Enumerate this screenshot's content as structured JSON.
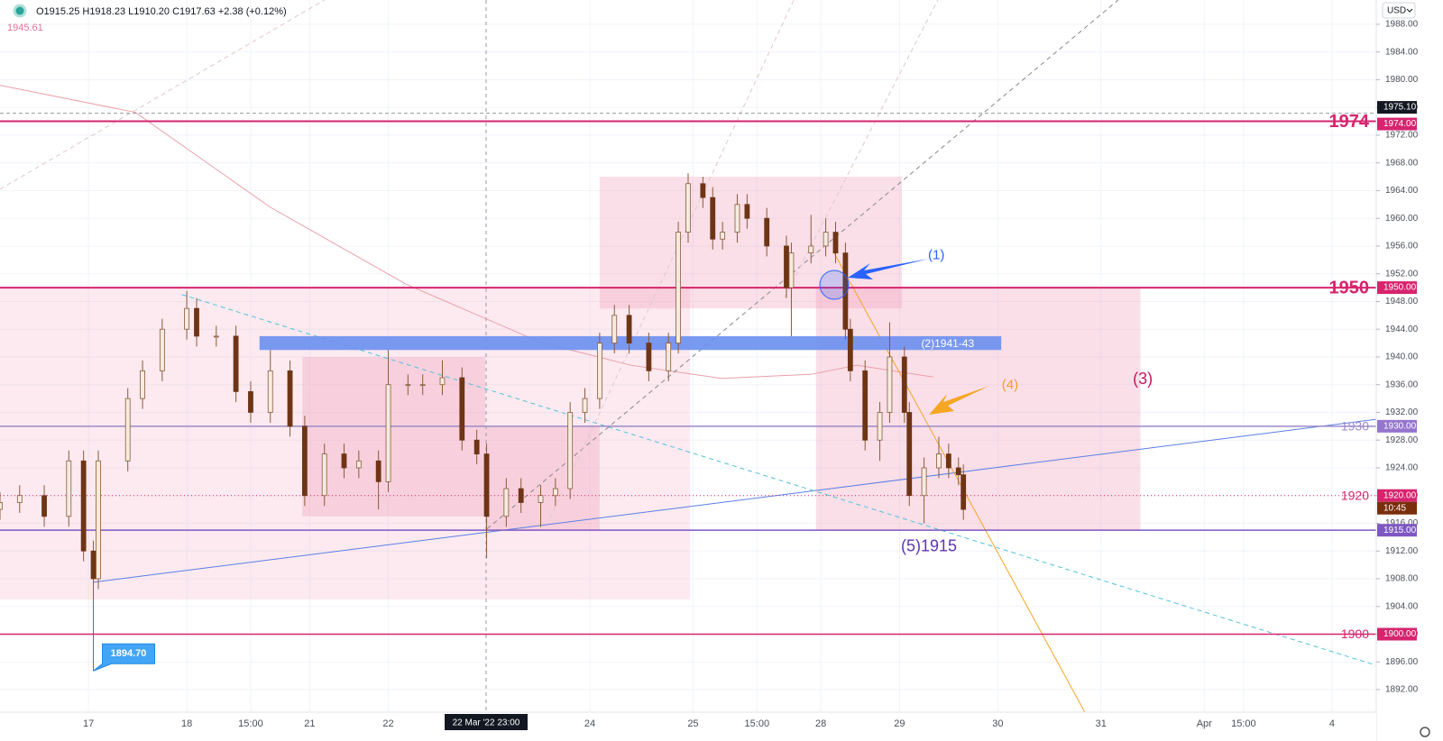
{
  "header": {
    "ohlc": "O1915.25 H1918.23 L1910.20 C1917.63 +2.38 (+0.12%)",
    "indicator_value": "1945.61",
    "currency": "USD"
  },
  "chart_data": {
    "type": "candlestick",
    "x": [
      0,
      4,
      9,
      14,
      17,
      19,
      20,
      26,
      29,
      33,
      38,
      40,
      44,
      48,
      51,
      55,
      59,
      62,
      66,
      70,
      73,
      77,
      79,
      83,
      86,
      90,
      94,
      97,
      99,
      103,
      106,
      110,
      113,
      116,
      119,
      122,
      125,
      128,
      132,
      136,
      138,
      140,
      143,
      145,
      147,
      150,
      152,
      156,
      160,
      161,
      165,
      168,
      170,
      172,
      173,
      176,
      179,
      181,
      184,
      185,
      188,
      191,
      193,
      195,
      196
    ],
    "open": [
      1918,
      1919,
      1920,
      1917,
      1925,
      1912,
      1908,
      1925,
      1934,
      1938,
      1944,
      1947,
      1943,
      1943,
      1935,
      1932,
      1938,
      1930,
      1920,
      1926,
      1924,
      1925,
      1922,
      1936,
      1936,
      1936,
      1937,
      1928,
      1926,
      1917,
      1921,
      1919,
      1920,
      1921,
      1932,
      1934,
      1942,
      1946,
      1942,
      1938,
      1942,
      1958,
      1965,
      1963,
      1957,
      1958,
      1962,
      1960,
      1956,
      1950,
      1955,
      1956,
      1958,
      1955,
      1944,
      1938,
      1928,
      1932,
      1940,
      1932,
      1920,
      1924,
      1926,
      1924,
      1923
    ],
    "high": [
      1920.5,
      1921.5,
      1921.5,
      1926.5,
      1926.5,
      1913.5,
      1926.5,
      1935.5,
      1939.5,
      1945.5,
      1949.5,
      1948.5,
      1944.5,
      1944.5,
      1936.5,
      1941,
      1939.5,
      1931.5,
      1927.5,
      1927.5,
      1926.5,
      1926.5,
      1941,
      1937.5,
      1937.5,
      1939.5,
      1938.5,
      1929.5,
      1927.5,
      1922.5,
      1922.5,
      1921.5,
      1922.5,
      1933.5,
      1935.5,
      1943.5,
      1947.5,
      1947.5,
      1943.5,
      1943.5,
      1959.5,
      1966.5,
      1966,
      1964.5,
      1959.5,
      1963.5,
      1963.5,
      1961.5,
      1957.5,
      1956.5,
      1960.5,
      1960,
      1959.5,
      1956.5,
      1945.5,
      1939.5,
      1933.5,
      1945,
      1941.5,
      1933.5,
      1925.5,
      1928.5,
      1927.5,
      1925.5,
      1924.5
    ],
    "low": [
      1916.5,
      1917.5,
      1915.5,
      1915.5,
      1910.5,
      1894.7,
      1906.5,
      1923.5,
      1932.5,
      1936.5,
      1942.5,
      1941.5,
      1941.5,
      1933.5,
      1930.5,
      1930.5,
      1928.5,
      1918.5,
      1918.5,
      1922.5,
      1922.5,
      1918,
      1920.5,
      1934.5,
      1934.5,
      1934.5,
      1926.5,
      1924.5,
      1911,
      1915.5,
      1917.5,
      1915.5,
      1918.5,
      1919.5,
      1930.5,
      1932.5,
      1940.5,
      1940.5,
      1936.5,
      1936.5,
      1940.5,
      1956.5,
      1961.5,
      1955.5,
      1955.5,
      1956.5,
      1958.5,
      1954.5,
      1948.5,
      1943,
      1953.5,
      1954.5,
      1953.5,
      1942.5,
      1936.5,
      1926.5,
      1925,
      1930.5,
      1930.5,
      1918.5,
      1916,
      1922.5,
      1922.5,
      1921.5,
      1916.5
    ],
    "close": [
      1919,
      1920,
      1917,
      1925,
      1912,
      1908,
      1925,
      1934,
      1938,
      1944,
      1947,
      1943,
      1943,
      1935,
      1932,
      1938,
      1930,
      1920,
      1926,
      1924,
      1925,
      1922,
      1936,
      1936,
      1936,
      1937,
      1928,
      1926,
      1917,
      1921,
      1919,
      1920,
      1921,
      1932,
      1934,
      1942,
      1946,
      1942,
      1938,
      1942,
      1958,
      1965,
      1963,
      1957,
      1958,
      1962,
      1960,
      1956,
      1950,
      1955,
      1956,
      1958,
      1955,
      1944,
      1938,
      1928,
      1932,
      1940,
      1932,
      1920,
      1924,
      1926,
      1924,
      1923,
      1918
    ],
    "up_color": "#f5ebe0",
    "down_color": "#6e3515",
    "wick_color": "#8a5a3a",
    "xlim": [
      0,
      280
    ],
    "xticks": [
      {
        "value": 18,
        "label": "17"
      },
      {
        "value": 38,
        "label": "18"
      },
      {
        "value": 51,
        "label": "15:00"
      },
      {
        "value": 63,
        "label": "21"
      },
      {
        "value": 79,
        "label": "22"
      },
      {
        "value": 120,
        "label": "24"
      },
      {
        "value": 141,
        "label": "25"
      },
      {
        "value": 154,
        "label": "15:00"
      },
      {
        "value": 167,
        "label": "28"
      },
      {
        "value": 183,
        "label": "29"
      },
      {
        "value": 203,
        "label": "30"
      },
      {
        "value": 224,
        "label": "31"
      },
      {
        "value": 245,
        "label": "Apr"
      },
      {
        "value": 253,
        "label": "15:00"
      },
      {
        "value": 271,
        "label": "4"
      }
    ],
    "ylim": [
      1888.75,
      1991.5
    ],
    "yticks": [
      {
        "value": 1988,
        "label": "1988.00"
      },
      {
        "value": 1984,
        "label": "1984.00"
      },
      {
        "value": 1980,
        "label": "1980.00"
      },
      {
        "value": 1976,
        "label": "1976.00"
      },
      {
        "value": 1972,
        "label": "1972.00"
      },
      {
        "value": 1968,
        "label": "1968.00"
      },
      {
        "value": 1964,
        "label": "1964.00"
      },
      {
        "value": 1960,
        "label": "1960.00"
      },
      {
        "value": 1956,
        "label": "1956.00"
      },
      {
        "value": 1952,
        "label": "1952.00"
      },
      {
        "value": 1948,
        "label": "1948.00"
      },
      {
        "value": 1944,
        "label": "1944.00"
      },
      {
        "value": 1940,
        "label": "1940.00"
      },
      {
        "value": 1936,
        "label": "1936.00"
      },
      {
        "value": 1932,
        "label": "1932.00"
      },
      {
        "value": 1928,
        "label": "1928.00"
      },
      {
        "value": 1924,
        "label": "1924.00"
      },
      {
        "value": 1920,
        "label": "1920.00"
      },
      {
        "value": 1916,
        "label": "1916.00"
      },
      {
        "value": 1912,
        "label": "1912.00"
      },
      {
        "value": 1908,
        "label": "1908.00"
      },
      {
        "value": 1904,
        "label": "1904.00"
      },
      {
        "value": 1900,
        "label": "1900.00"
      },
      {
        "value": 1896,
        "label": "1896.00"
      },
      {
        "value": 1892,
        "label": "1892.00"
      }
    ],
    "grid": true,
    "crosshair": {
      "x": 98.9,
      "label": "22 Mar '22   23:00"
    },
    "zones": [
      {
        "x": [
          0,
          140.4
        ],
        "y": [
          1905,
          1950
        ],
        "color": "rgba(240,150,180,0.2)"
      },
      {
        "x": [
          61.5,
          98.7
        ],
        "y": [
          1917,
          1940
        ],
        "color": "rgba(240,150,180,0.3)"
      },
      {
        "x": [
          98.7,
          122
        ],
        "y": [
          1915,
          1930
        ],
        "color": "rgba(240,150,180,0.3)"
      },
      {
        "x": [
          122,
          183.5
        ],
        "y": [
          1947,
          1966
        ],
        "color": "rgba(240,150,180,0.3)"
      },
      {
        "x": [
          166,
          232
        ],
        "y": [
          1915,
          1950
        ],
        "color": "rgba(240,150,180,0.3)"
      }
    ],
    "band": {
      "x": [
        52.8,
        203.7
      ],
      "y": [
        1941,
        1943
      ],
      "color": "#6a8ff0",
      "label": "(2)1941-43"
    },
    "drawings": [
      {
        "x": [
          0,
          27.5,
          55,
          82.6,
          110,
          128.4,
          146.8,
          165.1,
          174.3,
          189.9
        ],
        "y": [
          1979.2,
          1975.3,
          1961.6,
          1950.5,
          1942.1,
          1938.8,
          1936.9,
          1937.5,
          1938.8,
          1937.1
        ],
        "color": "#e8a0a8",
        "dash": "solid"
      },
      {
        "x": [
          19,
          280
        ],
        "y": [
          1907.5,
          1931
        ],
        "color": "#5b7ee5",
        "dash": "solid"
      },
      {
        "x": [
          37,
          280
        ],
        "y": [
          1949,
          1895.5
        ],
        "color": "#4fc3d9",
        "dash": "dashed"
      },
      {
        "x": [
          169.7,
          223.9
        ],
        "y": [
          1955,
          1884.6
        ],
        "color": "#f5a623",
        "dash": "solid"
      },
      {
        "x": [
          99.1,
          227.5
        ],
        "y": [
          1915.2,
          1991.5
        ],
        "color": "#888888",
        "dash": "dashed"
      },
      {
        "x": [
          0,
          66
        ],
        "y": [
          1964.2,
          1991.5
        ],
        "color": "#e0c8c8",
        "dash": "dashed"
      },
      {
        "x": [
          111.9,
          161.5
        ],
        "y": [
          1916.7,
          1991.5
        ],
        "color": "#e0c8c8",
        "dash": "dashed"
      },
      {
        "x": [
          159.6,
          190.8
        ],
        "y": [
          1948.6,
          1991.5
        ],
        "color": "#e0c8c8",
        "dash": "dashed"
      }
    ],
    "levels": [
      {
        "value": 1974,
        "color": "#d6246e",
        "emphasis": "major",
        "dash": "solid"
      },
      {
        "value": 1950,
        "color": "#d6246e",
        "emphasis": "major",
        "dash": "solid"
      },
      {
        "value": 1930,
        "color": "#9b8ac8",
        "emphasis": "minor",
        "dash": "solid"
      },
      {
        "value": 1920,
        "color": "#d6246e",
        "emphasis": "minor",
        "dash": "dotted"
      },
      {
        "value": 1900,
        "color": "#d6246e",
        "emphasis": "minor",
        "dash": "solid"
      },
      {
        "value": 1915,
        "color": "#7e57c2",
        "emphasis": "none",
        "dash": "solid"
      }
    ],
    "annotations": [
      {
        "x": 190.5,
        "y": 1954.6,
        "label": "(1)",
        "color": "#2962ff",
        "emphasis": "minor"
      },
      {
        "x": 205.5,
        "y": 1935.9,
        "label": "(4)",
        "color": "#f59f1a",
        "emphasis": "minor"
      },
      {
        "x": 232.5,
        "y": 1936.7,
        "label": "(3)",
        "color": "#c2185b",
        "emphasis": "major"
      },
      {
        "x": 189,
        "y": 1912.6,
        "label": "(5)1915",
        "color": "#5e35b1",
        "emphasis": "major"
      }
    ],
    "low_callout": {
      "x": 19,
      "y": 1894.7,
      "label": "1894.70",
      "color": "#42a5f5"
    },
    "price_badges": [
      {
        "value": 1975.1,
        "label": "1975.10",
        "color": "#131722"
      },
      {
        "value": 1974,
        "label": "1974.00",
        "color": "#d6246e"
      },
      {
        "value": 1950,
        "label": "1950.00",
        "color": "#d6246e"
      },
      {
        "value": 1930,
        "label": "1930.00",
        "color": "#9575cd"
      },
      {
        "value": 1920,
        "label": "1920.00",
        "color": "#d6246e"
      },
      {
        "value": 1915,
        "label": "1915.00",
        "color": "#7e57c2"
      },
      {
        "value": 1900,
        "label": "1900.00",
        "color": "#d6246e"
      }
    ],
    "countdown": "10:45"
  }
}
